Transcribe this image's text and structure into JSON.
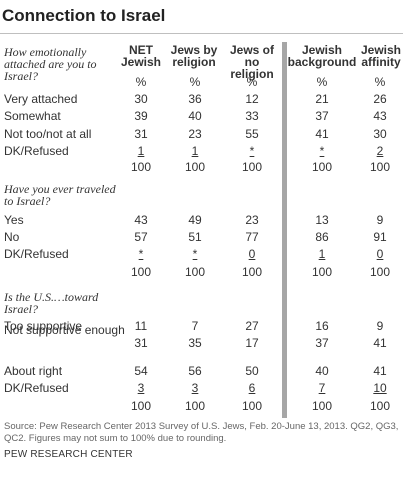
{
  "title": "Connection to Israel",
  "columns": [
    "NET Jewish",
    "Jews by religion",
    "Jews of no religion",
    "Jewish background",
    "Jewish affinity"
  ],
  "sections": [
    {
      "question": "How emotionally attached are you to Israel?",
      "rows": [
        {
          "label": "",
          "values": [
            "%",
            "%",
            "%",
            "%",
            "%"
          ]
        },
        {
          "label": "Very attached",
          "values": [
            "30",
            "36",
            "12",
            "21",
            "26"
          ]
        },
        {
          "label": "Somewhat",
          "values": [
            "39",
            "40",
            "33",
            "37",
            "43"
          ]
        },
        {
          "label": "Not too/not at all",
          "values": [
            "31",
            "23",
            "55",
            "41",
            "30"
          ]
        },
        {
          "label": "DK/Refused",
          "values": [
            "1",
            "1",
            "*",
            "*",
            "2"
          ],
          "underline": true
        },
        {
          "label": "",
          "values": [
            "100",
            "100",
            "100",
            "100",
            "100"
          ]
        }
      ]
    },
    {
      "question": "Have you ever traveled to Israel?",
      "rows": [
        {
          "label": "Yes",
          "values": [
            "43",
            "49",
            "23",
            "13",
            "9"
          ]
        },
        {
          "label": "No",
          "values": [
            "57",
            "51",
            "77",
            "86",
            "91"
          ]
        },
        {
          "label": "DK/Refused",
          "values": [
            "*",
            "*",
            "0",
            "1",
            "0"
          ],
          "underline": true
        },
        {
          "label": "",
          "values": [
            "100",
            "100",
            "100",
            "100",
            "100"
          ]
        }
      ]
    },
    {
      "question": "Is the U.S.…toward Israel?",
      "rows": [
        {
          "label": "Too supportive",
          "values": [
            "11",
            "7",
            "27",
            "16",
            "9"
          ]
        },
        {
          "label": "Not supportive enough",
          "values": [
            "31",
            "35",
            "17",
            "37",
            "41"
          ]
        },
        {
          "label": "About right",
          "values": [
            "54",
            "56",
            "50",
            "40",
            "41"
          ]
        },
        {
          "label": "DK/Refused",
          "values": [
            "3",
            "3",
            "6",
            "7",
            "10"
          ],
          "underline": true
        },
        {
          "label": "",
          "values": [
            "100",
            "100",
            "100",
            "100",
            "100"
          ]
        }
      ]
    }
  ],
  "source": "Source: Pew Research Center 2013 Survey of U.S. Jews, Feb. 20-June 13, 2013. QG2, QG3, QC2. Figures may not sum to 100% due to rounding.",
  "org": "PEW RESEARCH CENTER"
}
